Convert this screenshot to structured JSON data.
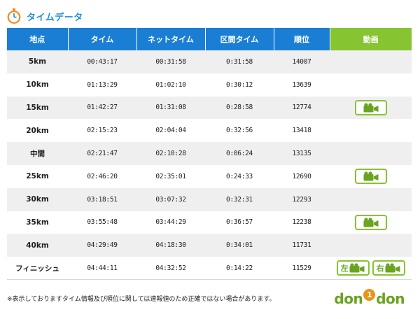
{
  "header": {
    "title": "タイムデータ",
    "icon": "stopwatch-icon"
  },
  "table": {
    "columns": [
      "地点",
      "タイム",
      "ネットタイム",
      "区間タイム",
      "順位",
      "動画"
    ],
    "rows": [
      {
        "point": "5km",
        "time": "00:43:17",
        "net": "00:31:58",
        "split": "0:31:58",
        "rank": "14007",
        "video": "none"
      },
      {
        "point": "10km",
        "time": "01:13:29",
        "net": "01:02:10",
        "split": "0:30:12",
        "rank": "13639",
        "video": "none"
      },
      {
        "point": "15km",
        "time": "01:42:27",
        "net": "01:31:08",
        "split": "0:28:58",
        "rank": "12774",
        "video": "single"
      },
      {
        "point": "20km",
        "time": "02:15:23",
        "net": "02:04:04",
        "split": "0:32:56",
        "rank": "13418",
        "video": "none"
      },
      {
        "point": "中間",
        "time": "02:21:47",
        "net": "02:10:28",
        "split": "0:06:24",
        "rank": "13135",
        "video": "none"
      },
      {
        "point": "25km",
        "time": "02:46:20",
        "net": "02:35:01",
        "split": "0:24:33",
        "rank": "12690",
        "video": "single"
      },
      {
        "point": "30km",
        "time": "03:18:51",
        "net": "03:07:32",
        "split": "0:32:31",
        "rank": "12293",
        "video": "none"
      },
      {
        "point": "35km",
        "time": "03:55:48",
        "net": "03:44:29",
        "split": "0:36:57",
        "rank": "12238",
        "video": "single"
      },
      {
        "point": "40km",
        "time": "04:29:49",
        "net": "04:18:30",
        "split": "0:34:01",
        "rank": "11731",
        "video": "none"
      },
      {
        "point": "フィニッシュ",
        "time": "04:44:11",
        "net": "04:32:52",
        "split": "0:14:22",
        "rank": "11529",
        "video": "dual"
      }
    ],
    "video_left_label": "左",
    "video_right_label": "右",
    "video_icon": "video-camera-icon"
  },
  "note": "※表示しておりますタイム情報及び順位に関しては速報値のため正確ではない場合があります。",
  "logo": {
    "part1": "don",
    "part2": "1",
    "part3": "don"
  },
  "colors": {
    "header_blue": "#1a7fd4",
    "video_green": "#86c431",
    "title_blue": "#1a8fd6"
  }
}
